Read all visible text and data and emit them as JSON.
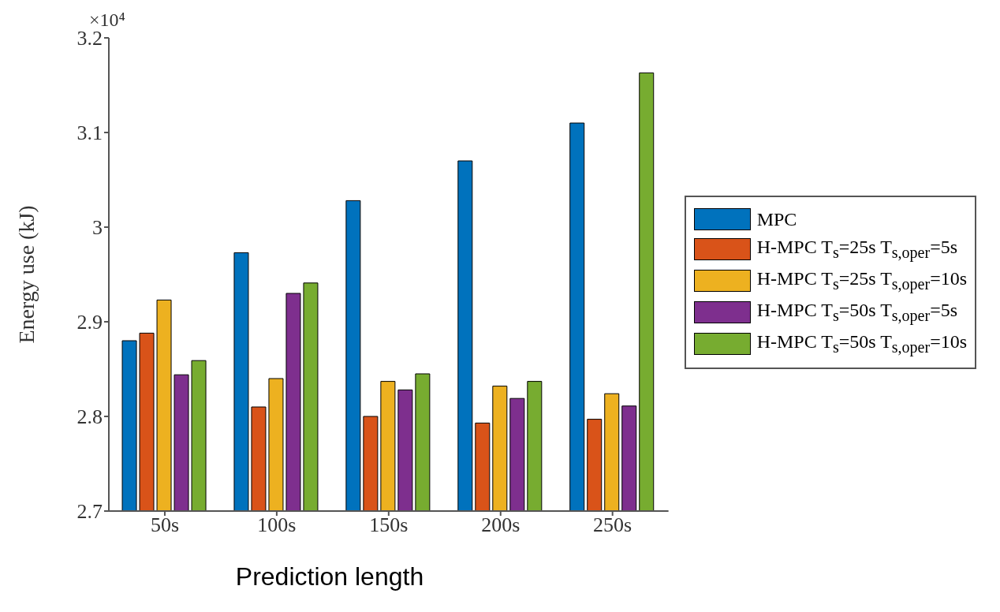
{
  "chart_data": {
    "type": "bar",
    "ylabel": "Energy use (kJ)",
    "xlabel": "Prediction length",
    "annotations": [
      "×10⁴"
    ],
    "categories": [
      "50s",
      "100s",
      "150s",
      "200s",
      "250s"
    ],
    "series": [
      {
        "name": "MPC",
        "color": "#0072bd",
        "values": [
          2.88,
          2.973,
          3.028,
          3.07,
          3.11
        ]
      },
      {
        "name": "H-MPC T$_{s}$=25s T$_{s,oper}$=5s",
        "color": "#d95319",
        "values": [
          2.888,
          2.81,
          2.8,
          2.793,
          2.797
        ]
      },
      {
        "name": "H-MPC T$_{s}$=25s T$_{s,oper}$=10s",
        "color": "#edb120",
        "values": [
          2.923,
          2.84,
          2.837,
          2.832,
          2.824
        ]
      },
      {
        "name": "H-MPC T$_{s}$=50s T$_{s,oper}$=5s",
        "color": "#7e2f8e",
        "values": [
          2.844,
          2.93,
          2.828,
          2.819,
          2.811
        ]
      },
      {
        "name": "H-MPC T$_{s}$=50s T$_{s,oper}$=10s",
        "color": "#77ac30",
        "values": [
          2.859,
          2.941,
          2.845,
          2.837,
          3.163
        ]
      }
    ],
    "ylim": [
      2.7,
      3.2
    ],
    "yticks": [
      2.7,
      2.8,
      2.9,
      3,
      3.1,
      3.2
    ],
    "grid": false,
    "legend": "right"
  }
}
